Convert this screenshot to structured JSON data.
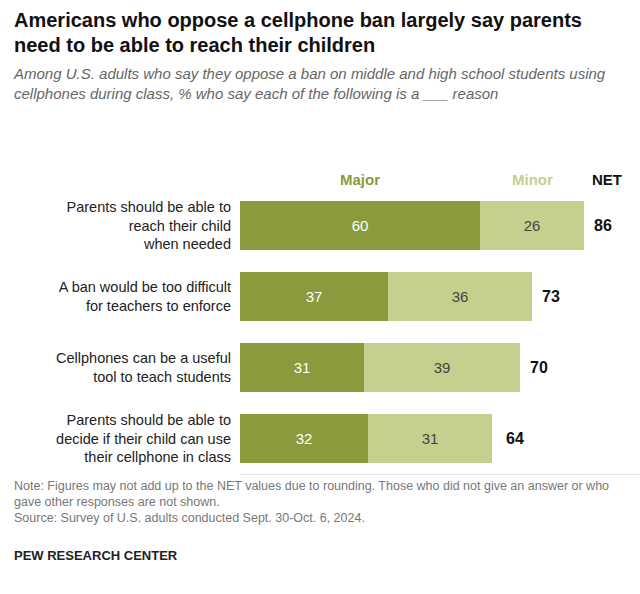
{
  "chart_data": {
    "type": "bar",
    "title": "Americans who oppose a cellphone ban largely say parents need to be able to reach their children",
    "subtitle": "Among U.S. adults who say they oppose a ban on middle and high school students using cellphones during class, % who say each of the following is a ___ reason",
    "orientation": "horizontal",
    "stacked": true,
    "data_labels": true,
    "tick_labels": "y",
    "grid": false,
    "xlim": [
      0,
      100
    ],
    "categories": [
      "Parents should be able to\nreach their child\nwhen needed",
      "A ban would be too difficult\nfor teachers to enforce",
      "Cellphones can be a useful\ntool to teach students",
      "Parents should be able to\ndecide if their child can use\ntheir cellphone in class"
    ],
    "series": [
      {
        "name": "Major",
        "color": "#8b9a3c",
        "values": [
          60,
          37,
          31,
          32
        ]
      },
      {
        "name": "Minor",
        "color": "#c5cf8e",
        "values": [
          26,
          36,
          39,
          31
        ]
      }
    ],
    "net": {
      "name": "NET",
      "values": [
        86,
        73,
        70,
        64
      ]
    },
    "note": "Note: Figures may not add up to the NET values due to rounding. Those who did not give an answer or who gave other responses are not shown.",
    "source": "Source: Survey of U.S. adults conducted Sept. 30-Oct. 6, 2024.",
    "credit": "PEW RESEARCH CENTER"
  }
}
